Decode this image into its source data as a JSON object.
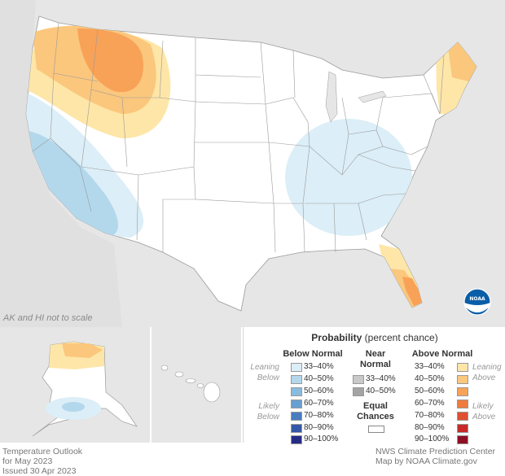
{
  "map": {
    "title_line1": "Temperature Outlook",
    "title_line2": "for May 2023",
    "issued": "Issued 30 Apr 2023",
    "credit_line1": "NWS Climate Prediction Center",
    "credit_line2": "Map by NOAA Climate.gov",
    "inset_note": "AK and HI not to scale",
    "logo_text": "NOAA"
  },
  "legend": {
    "title_bold": "Probability",
    "title_rest": " (percent chance)",
    "below_header": "Below Normal",
    "near_header_1": "Near",
    "near_header_2": "Normal",
    "above_header": "Above Normal",
    "leaning_below_1": "Leaning",
    "leaning_below_2": "Below",
    "likely_below_1": "Likely",
    "likely_below_2": "Below",
    "leaning_above_1": "Leaning",
    "leaning_above_2": "Above",
    "likely_above_1": "Likely",
    "likely_above_2": "Above",
    "equal_1": "Equal",
    "equal_2": "Chances",
    "below": [
      {
        "label": "33–40%",
        "color": "#dceef7"
      },
      {
        "label": "40–50%",
        "color": "#b3d8ec"
      },
      {
        "label": "50–60%",
        "color": "#88bcdf"
      },
      {
        "label": "60–70%",
        "color": "#6a9fd1"
      },
      {
        "label": "70–80%",
        "color": "#4a7cc0"
      },
      {
        "label": "80–90%",
        "color": "#3557a8"
      },
      {
        "label": "90–100%",
        "color": "#262b86"
      }
    ],
    "near": [
      {
        "label": "33–40%",
        "color": "#c9c9c9"
      },
      {
        "label": "40–50%",
        "color": "#a4a4a4"
      }
    ],
    "above": [
      {
        "label": "33–40%",
        "color": "#fde6a8"
      },
      {
        "label": "40–50%",
        "color": "#fbc77d"
      },
      {
        "label": "50–60%",
        "color": "#f8a258"
      },
      {
        "label": "60–70%",
        "color": "#ef7b3f"
      },
      {
        "label": "70–80%",
        "color": "#df4f31"
      },
      {
        "label": "80–90%",
        "color": "#c82a2a"
      },
      {
        "label": "90–100%",
        "color": "#8e0f23"
      }
    ]
  }
}
